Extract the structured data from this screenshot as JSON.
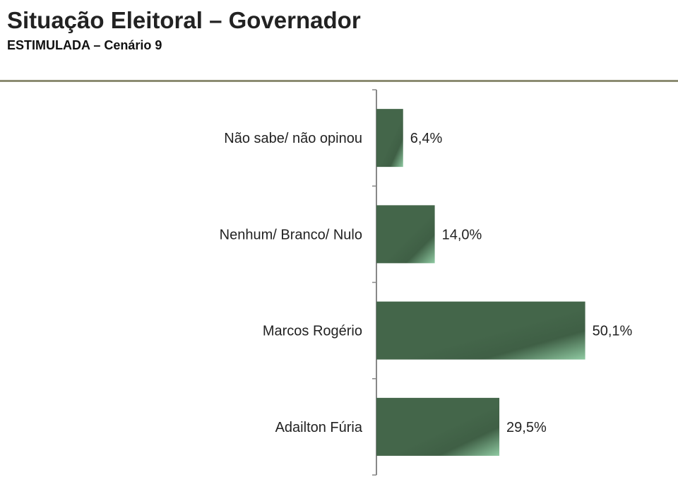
{
  "chart_data": {
    "type": "bar",
    "orientation": "horizontal",
    "title": "Situação Eleitoral – Governador",
    "subtitle": "ESTIMULADA – Cenário 9",
    "categories": [
      "Não sabe/ não opinou",
      "Nenhum/ Branco/ Nulo",
      "Marcos Rogério",
      "Adailton Fúria"
    ],
    "values": [
      6.4,
      14.0,
      50.1,
      29.5
    ],
    "value_labels": [
      "6,4%",
      "14,0%",
      "50,1%",
      "29,5%"
    ],
    "xlabel": "",
    "ylabel": "",
    "xlim": [
      0,
      100
    ],
    "grid": false,
    "colors": {
      "bar_dark": "#44664a",
      "bar_light": "#86c39a",
      "rule": "#8c8c72"
    }
  }
}
